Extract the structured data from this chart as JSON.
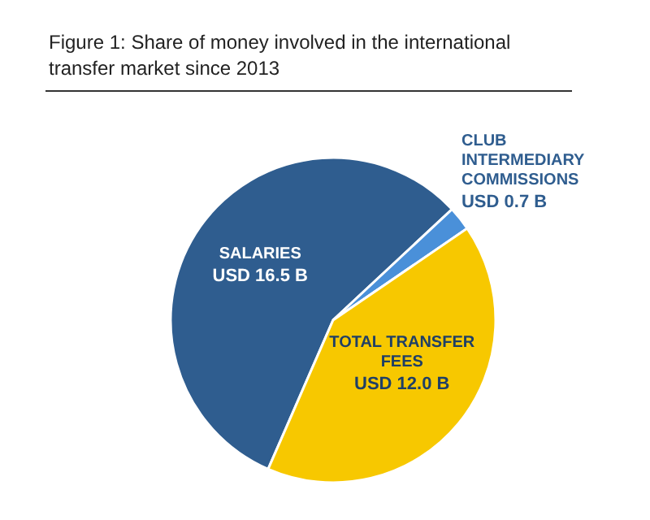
{
  "chart_data": {
    "type": "pie",
    "title": "Figure 1: Share of money involved in the international transfer market since 2013",
    "categories": [
      "SALARIES",
      "CLUB INTERMEDIARY COMMISSIONS",
      "TOTAL TRANSFER FEES"
    ],
    "values": [
      16.5,
      0.7,
      12.0
    ],
    "value_labels": [
      "USD 16.5 B",
      "USD 0.7 B",
      "USD 12.0 B"
    ],
    "colors": [
      "#2f5d8f",
      "#4a90d9",
      "#f7c800"
    ]
  }
}
